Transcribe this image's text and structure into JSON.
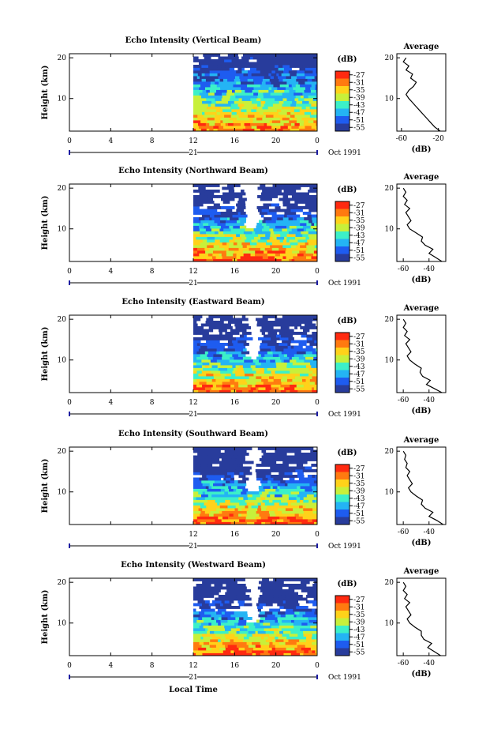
{
  "figure": {
    "xlabel_common": "Local Time",
    "date_label": "Oct 1991",
    "day_label": "21"
  },
  "colorbar": {
    "unit": "(dB)",
    "ticks": [
      "-27",
      "-31",
      "-35",
      "-39",
      "-43",
      "-47",
      "-51",
      "-55"
    ],
    "colors": [
      "#ff2a10",
      "#ff7a10",
      "#ffd21a",
      "#c8f03a",
      "#3cf0c8",
      "#24b4f4",
      "#1e5cf0",
      "#283c9c"
    ]
  },
  "chart_data": [
    {
      "type": "heatmap",
      "title": "Echo Intensity (Vertical Beam)",
      "xlabel": "",
      "ylabel": "Height (km)",
      "xticks": [
        "0",
        "4",
        "8",
        "12",
        "16",
        "20",
        "0"
      ],
      "yticks": [
        "20",
        "10"
      ],
      "xlim": [
        0,
        24
      ],
      "ylim": [
        2,
        21
      ],
      "data_start_hour": 12,
      "gap_hours": null,
      "average": {
        "title": "Average",
        "xlabel": "(dB)",
        "xticks": [
          "-60",
          "-20"
        ],
        "yticks": [
          "20",
          "10"
        ],
        "xlim": [
          -65,
          -12
        ],
        "heights": [
          2,
          3,
          4,
          5,
          6,
          7,
          8,
          9,
          10,
          11,
          12,
          13,
          14,
          15,
          16,
          17,
          18,
          19,
          20
        ],
        "values": [
          -18,
          -24,
          -28,
          -32,
          -36,
          -40,
          -44,
          -48,
          -52,
          -55,
          -52,
          -47,
          -44,
          -50,
          -48,
          -55,
          -52,
          -58,
          -55
        ]
      }
    },
    {
      "type": "heatmap",
      "title": "Echo Intensity (Northward Beam)",
      "xlabel": "",
      "ylabel": "Height (km)",
      "xticks": [
        "0",
        "4",
        "8",
        "12",
        "16",
        "20",
        "0"
      ],
      "yticks": [
        "20",
        "10"
      ],
      "xlim": [
        0,
        24
      ],
      "ylim": [
        2,
        21
      ],
      "data_start_hour": 12,
      "gap_hours": [
        16.7,
        18.0
      ],
      "average": {
        "title": "Average",
        "xlabel": "(dB)",
        "xticks": [
          "-60",
          "-40"
        ],
        "yticks": [
          "20",
          "10"
        ],
        "xlim": [
          -65,
          -27
        ],
        "heights": [
          2,
          3,
          4,
          5,
          6,
          7,
          8,
          9,
          10,
          11,
          12,
          13,
          14,
          15,
          16,
          17,
          18,
          19,
          20
        ],
        "values": [
          -30,
          -35,
          -40,
          -37,
          -43,
          -46,
          -45,
          -50,
          -55,
          -57,
          -54,
          -56,
          -58,
          -55,
          -59,
          -57,
          -60,
          -58,
          -60
        ]
      }
    },
    {
      "type": "heatmap",
      "title": "Echo Intensity (Eastward Beam)",
      "xlabel": "",
      "ylabel": "Height (km)",
      "xticks": [
        "0",
        "4",
        "8",
        "12",
        "16",
        "20",
        "0"
      ],
      "yticks": [
        "20",
        "10"
      ],
      "xlim": [
        0,
        24
      ],
      "ylim": [
        2,
        21
      ],
      "data_start_hour": 12,
      "gap_hours": [
        17.0,
        18.0
      ],
      "average": {
        "title": "Average",
        "xlabel": "(dB)",
        "xticks": [
          "-60",
          "-40"
        ],
        "yticks": [
          "20",
          "10"
        ],
        "xlim": [
          -65,
          -27
        ],
        "heights": [
          2,
          3,
          4,
          5,
          6,
          7,
          8,
          9,
          10,
          11,
          12,
          13,
          14,
          15,
          16,
          17,
          18,
          19,
          20
        ],
        "values": [
          -30,
          -36,
          -42,
          -39,
          -45,
          -47,
          -46,
          -51,
          -55,
          -57,
          -54,
          -56,
          -58,
          -55,
          -59,
          -57,
          -60,
          -58,
          -60
        ]
      }
    },
    {
      "type": "heatmap",
      "title": "Echo Intensity (Southward Beam)",
      "xlabel": "",
      "ylabel": "Height (km)",
      "xticks": [
        "12",
        "16",
        "20",
        "0"
      ],
      "yticks": [
        "20",
        "10"
      ],
      "xlim": [
        0,
        24
      ],
      "ylim": [
        2,
        21
      ],
      "data_start_hour": 12,
      "gap_hours": [
        17.0,
        18.0
      ],
      "average": {
        "title": "Average",
        "xlabel": "(dB)",
        "xticks": [
          "-60",
          "-40"
        ],
        "yticks": [
          "20",
          "10"
        ],
        "xlim": [
          -65,
          -27
        ],
        "heights": [
          2,
          3,
          4,
          5,
          6,
          7,
          8,
          9,
          10,
          11,
          12,
          13,
          14,
          15,
          16,
          17,
          18,
          19,
          20
        ],
        "values": [
          -29,
          -34,
          -40,
          -37,
          -43,
          -46,
          -45,
          -50,
          -54,
          -56,
          -53,
          -55,
          -57,
          -55,
          -58,
          -57,
          -59,
          -58,
          -60
        ]
      }
    },
    {
      "type": "heatmap",
      "title": "Echo Intensity (Westward Beam)",
      "xlabel": "Local Time",
      "ylabel": "Height (km)",
      "xticks": [
        "0",
        "4",
        "8",
        "12",
        "16",
        "20",
        "0"
      ],
      "yticks": [
        "20",
        "10"
      ],
      "xlim": [
        0,
        24
      ],
      "ylim": [
        2,
        21
      ],
      "data_start_hour": 12,
      "gap_hours": [
        17.0,
        18.0
      ],
      "average": {
        "title": "Average",
        "xlabel": "(dB)",
        "xticks": [
          "-60",
          "-40"
        ],
        "yticks": [
          "20",
          "10"
        ],
        "xlim": [
          -65,
          -27
        ],
        "heights": [
          2,
          3,
          4,
          5,
          6,
          7,
          8,
          9,
          10,
          11,
          12,
          13,
          14,
          15,
          16,
          17,
          18,
          19,
          20
        ],
        "values": [
          -31,
          -36,
          -41,
          -38,
          -44,
          -46,
          -46,
          -51,
          -55,
          -57,
          -54,
          -56,
          -58,
          -55,
          -59,
          -57,
          -60,
          -58,
          -60
        ]
      }
    }
  ]
}
